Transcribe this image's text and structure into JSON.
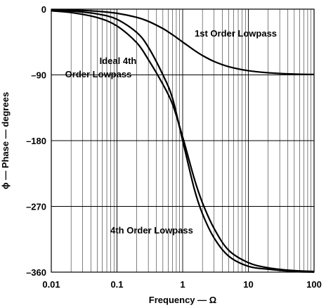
{
  "chart_data": {
    "type": "line",
    "xlabel": "Frequency — Ω",
    "ylabel": "ϕ — Phase — degrees",
    "x_scale": "log",
    "xlim": [
      0.01,
      100
    ],
    "ylim": [
      -360,
      0
    ],
    "x_ticks": [
      0.01,
      0.1,
      1,
      10,
      100
    ],
    "x_tick_labels": [
      "0.01",
      "0.1",
      "1",
      "10",
      "100"
    ],
    "y_ticks": [
      0,
      -90,
      -180,
      -270,
      -360
    ],
    "y_tick_labels": [
      "0",
      "–90",
      "–180",
      "–270",
      "–360"
    ],
    "grid": true,
    "series": [
      {
        "name": "1st Order Lowpass",
        "x": [
          0.01,
          0.02,
          0.05,
          0.1,
          0.2,
          0.3,
          0.5,
          0.7,
          1,
          1.5,
          2,
          3,
          5,
          10,
          20,
          50,
          100
        ],
        "y": [
          -0.6,
          -1.1,
          -2.9,
          -5.7,
          -11.3,
          -16.7,
          -26.6,
          -35.0,
          -45.0,
          -56.3,
          -63.4,
          -71.6,
          -78.7,
          -84.3,
          -87.1,
          -88.9,
          -89.4
        ]
      },
      {
        "name": "Ideal 4th Order Lowpass",
        "x": [
          0.01,
          0.02,
          0.05,
          0.1,
          0.2,
          0.3,
          0.5,
          0.7,
          1,
          1.5,
          2,
          3,
          5,
          10,
          20,
          50,
          100
        ],
        "y": [
          -2.3,
          -4.6,
          -11.5,
          -23,
          -46,
          -69,
          -103,
          -130,
          -175,
          -232,
          -265,
          -300,
          -330,
          -347,
          -354,
          -358,
          -359
        ]
      },
      {
        "name": "4th Order Lowpass",
        "x": [
          0.01,
          0.02,
          0.05,
          0.1,
          0.2,
          0.3,
          0.5,
          0.7,
          1,
          1.5,
          2,
          3,
          5,
          10,
          20,
          50,
          100
        ],
        "y": [
          -1.2,
          -2.5,
          -6.5,
          -14,
          -32,
          -52,
          -90,
          -122,
          -180,
          -246,
          -280,
          -313,
          -338,
          -352,
          -356,
          -359,
          -360
        ]
      }
    ],
    "annotations": [
      "1st Order Lowpass",
      "Ideal 4th",
      "Order Lowpass",
      "4th Order Lowpass"
    ]
  }
}
